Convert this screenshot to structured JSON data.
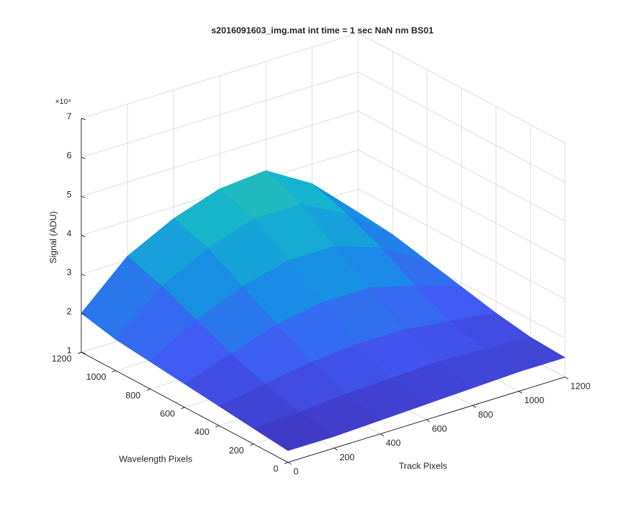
{
  "chart_data": {
    "type": "surface",
    "title": "s2016091603_img.mat int time = 1 sec  NaN nm BS01",
    "xlabel": "Track Pixels",
    "ylabel": "Wavelength Pixels",
    "zlabel": "Signal (ADU)",
    "zexponent": "×10⁴",
    "x": [
      0,
      200,
      400,
      600,
      800,
      1000,
      1200
    ],
    "y": [
      0,
      200,
      400,
      600,
      800,
      1000,
      1200
    ],
    "z": [
      [
        1.3,
        1.3,
        1.35,
        1.4,
        1.45,
        1.5,
        1.5
      ],
      [
        1.4,
        1.45,
        1.55,
        1.6,
        1.65,
        1.6,
        1.55
      ],
      [
        1.5,
        1.7,
        1.9,
        2.0,
        2.0,
        1.85,
        1.7
      ],
      [
        1.6,
        2.0,
        2.4,
        2.6,
        2.6,
        2.3,
        1.9
      ],
      [
        1.7,
        2.4,
        2.9,
        3.2,
        3.2,
        2.8,
        2.1
      ],
      [
        1.8,
        2.8,
        3.4,
        3.8,
        3.8,
        3.2,
        2.3
      ],
      [
        2.0,
        3.1,
        3.7,
        4.1,
        4.2,
        3.5,
        2.4
      ]
    ],
    "xlim": [
      0,
      1200
    ],
    "ylim": [
      0,
      1200
    ],
    "zlim": [
      1,
      7
    ],
    "xticks": [
      0,
      200,
      400,
      600,
      800,
      1000,
      1200
    ],
    "yticks": [
      0,
      200,
      400,
      600,
      800,
      1000,
      1200
    ],
    "zticks": [
      1,
      2,
      3,
      4,
      5,
      6,
      7
    ],
    "grid": true,
    "colormap": "parula"
  }
}
